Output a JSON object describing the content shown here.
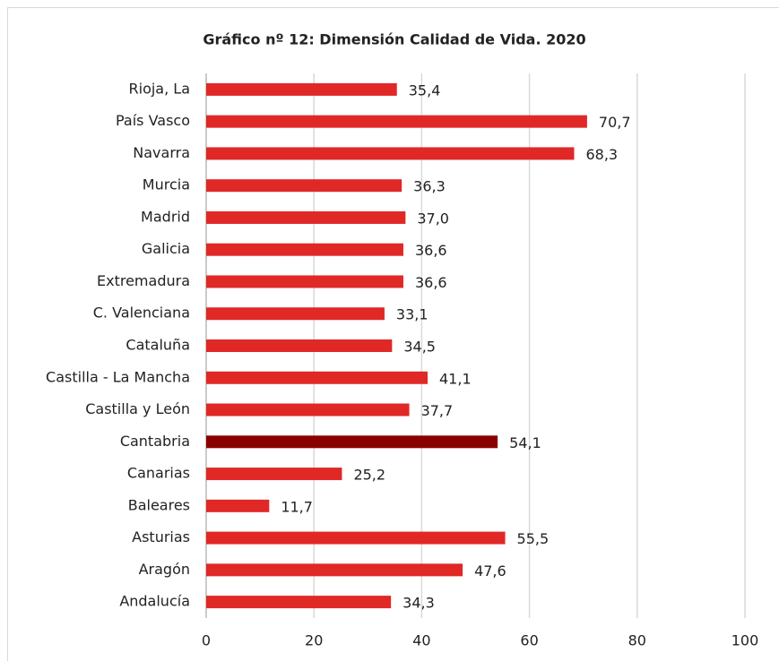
{
  "chart_data": {
    "type": "barh",
    "title": "Gráfico nº 12: Dimensión Calidad de Vida. 2020",
    "categories": [
      "Rioja, La",
      "País Vasco",
      "Navarra",
      "Murcia",
      "Madrid",
      "Galicia",
      "Extremadura",
      "C. Valenciana",
      "Cataluña",
      "Castilla - La Mancha",
      "Castilla y León",
      "Cantabria",
      "Canarias",
      "Baleares",
      "Asturias",
      "Aragón",
      "Andalucía"
    ],
    "values": [
      35.4,
      70.7,
      68.3,
      36.3,
      37.0,
      36.6,
      36.6,
      33.1,
      34.5,
      41.1,
      37.7,
      54.1,
      25.2,
      11.7,
      55.5,
      47.6,
      34.3
    ],
    "value_labels": [
      "35,4",
      "70,7",
      "68,3",
      "36,3",
      "37,0",
      "36,6",
      "36,6",
      "33,1",
      "34,5",
      "41,1",
      "37,7",
      "54,1",
      "25,2",
      "11,7",
      "55,5",
      "47,6",
      "34,3"
    ],
    "colors": [
      "#e02826",
      "#e02826",
      "#e02826",
      "#e02826",
      "#e02826",
      "#e02826",
      "#e02826",
      "#e02826",
      "#e02826",
      "#e02826",
      "#e02826",
      "#8b0000",
      "#e02826",
      "#e02826",
      "#e02826",
      "#e02826",
      "#e02826"
    ],
    "xlim": [
      0,
      100
    ],
    "xticks": [
      0,
      20,
      40,
      60,
      80,
      100
    ],
    "grid": true
  }
}
